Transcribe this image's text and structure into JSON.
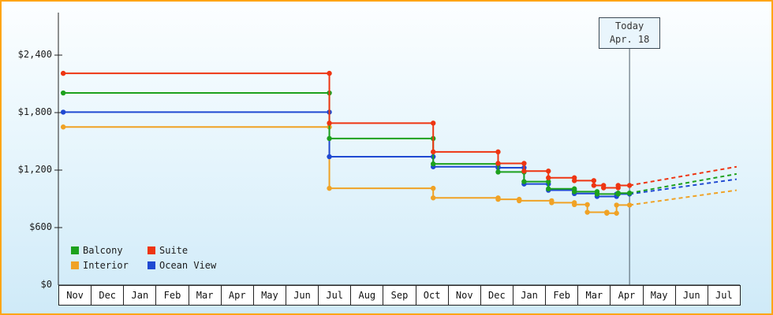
{
  "frame": {
    "border_color": "#ffa516",
    "accent_colors": {
      "balcony_green": "#1da11d",
      "suite_red": "#ee3512",
      "interior_orange": "#f0a225",
      "ocean_view_blue": "#1f49d2"
    }
  },
  "chart_data": {
    "type": "line",
    "subtype": "step-price-history-with-forecast",
    "title": "",
    "xlabel": "",
    "ylabel": "",
    "x_axis": {
      "months": [
        "Nov",
        "Dec",
        "Jan",
        "Feb",
        "Mar",
        "Apr",
        "May",
        "Jun",
        "Jul",
        "Aug",
        "Sep",
        "Oct",
        "Nov",
        "Dec",
        "Jan",
        "Feb",
        "Mar",
        "Apr",
        "May",
        "Jun",
        "Jul"
      ],
      "unit_note": "x values below are fractional month indexes from first Nov (0) to last Jul (21)"
    },
    "y_axis": {
      "ticks": [
        {
          "label": "$0",
          "value": 0
        },
        {
          "label": "$600",
          "value": 600
        },
        {
          "label": "$1,200",
          "value": 1200
        },
        {
          "label": "$1,800",
          "value": 1800
        },
        {
          "label": "$2,400",
          "value": 2400
        }
      ],
      "ylim": [
        0,
        2850
      ],
      "grid": false
    },
    "today": {
      "line1": "Today",
      "line2": "Apr. 18",
      "x_month": 17.6
    },
    "legend_order": [
      "Balcony",
      "Suite",
      "Interior",
      "Ocean View"
    ],
    "legend_position": "bottom-left-inside",
    "series": [
      {
        "name": "Interior",
        "color": "#f0a225",
        "steps": [
          [
            0.15,
            1650
          ],
          [
            8.35,
            1650
          ],
          [
            8.35,
            1010
          ],
          [
            11.55,
            1010
          ],
          [
            11.55,
            910
          ],
          [
            13.55,
            910
          ],
          [
            13.55,
            895
          ],
          [
            14.2,
            895
          ],
          [
            14.2,
            880
          ],
          [
            15.2,
            880
          ],
          [
            15.2,
            860
          ],
          [
            15.9,
            860
          ],
          [
            15.9,
            840
          ],
          [
            16.3,
            840
          ],
          [
            16.3,
            760
          ],
          [
            16.9,
            760
          ],
          [
            16.9,
            750
          ],
          [
            17.2,
            750
          ],
          [
            17.2,
            835
          ],
          [
            17.6,
            835
          ]
        ],
        "forecast": [
          [
            17.6,
            835
          ],
          [
            20.9,
            990
          ]
        ]
      },
      {
        "name": "Ocean View",
        "color": "#1f49d2",
        "steps": [
          [
            0.15,
            1805
          ],
          [
            8.35,
            1805
          ],
          [
            8.35,
            1340
          ],
          [
            11.55,
            1340
          ],
          [
            11.55,
            1235
          ],
          [
            13.55,
            1235
          ],
          [
            13.55,
            1225
          ],
          [
            14.35,
            1225
          ],
          [
            14.35,
            1055
          ],
          [
            15.1,
            1055
          ],
          [
            15.1,
            990
          ],
          [
            15.9,
            990
          ],
          [
            15.9,
            955
          ],
          [
            16.6,
            955
          ],
          [
            16.6,
            925
          ],
          [
            17.2,
            925
          ],
          [
            17.2,
            950
          ],
          [
            17.6,
            950
          ]
        ],
        "forecast": [
          [
            17.6,
            950
          ],
          [
            20.9,
            1105
          ]
        ]
      },
      {
        "name": "Balcony",
        "color": "#1da11d",
        "steps": [
          [
            0.15,
            2005
          ],
          [
            8.35,
            2005
          ],
          [
            8.35,
            1530
          ],
          [
            11.55,
            1530
          ],
          [
            11.55,
            1265
          ],
          [
            13.55,
            1265
          ],
          [
            13.55,
            1180
          ],
          [
            14.35,
            1180
          ],
          [
            14.35,
            1080
          ],
          [
            15.1,
            1080
          ],
          [
            15.1,
            1005
          ],
          [
            15.9,
            1005
          ],
          [
            15.9,
            975
          ],
          [
            16.6,
            975
          ],
          [
            16.6,
            950
          ],
          [
            17.25,
            950
          ],
          [
            17.25,
            960
          ],
          [
            17.6,
            960
          ]
        ],
        "forecast": [
          [
            17.6,
            960
          ],
          [
            20.9,
            1160
          ]
        ]
      },
      {
        "name": "Suite",
        "color": "#ee3512",
        "steps": [
          [
            0.15,
            2210
          ],
          [
            8.35,
            2210
          ],
          [
            8.35,
            1690
          ],
          [
            11.55,
            1690
          ],
          [
            11.55,
            1390
          ],
          [
            13.55,
            1390
          ],
          [
            13.55,
            1270
          ],
          [
            14.35,
            1270
          ],
          [
            14.35,
            1190
          ],
          [
            15.1,
            1190
          ],
          [
            15.1,
            1120
          ],
          [
            15.9,
            1120
          ],
          [
            15.9,
            1090
          ],
          [
            16.5,
            1090
          ],
          [
            16.5,
            1040
          ],
          [
            16.8,
            1040
          ],
          [
            16.8,
            1015
          ],
          [
            17.25,
            1015
          ],
          [
            17.25,
            1040
          ],
          [
            17.6,
            1040
          ]
        ],
        "forecast": [
          [
            17.6,
            1040
          ],
          [
            20.9,
            1235
          ]
        ]
      }
    ]
  }
}
